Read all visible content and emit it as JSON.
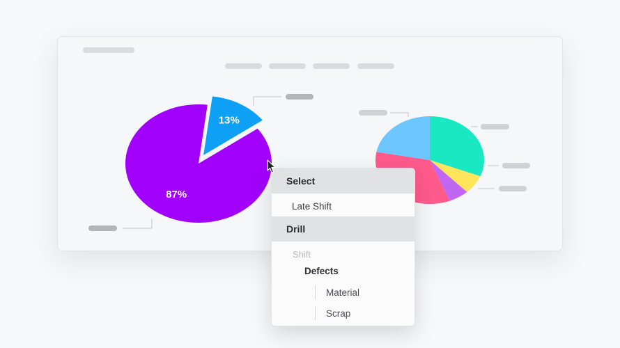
{
  "chart_data": [
    {
      "type": "pie",
      "slices": [
        {
          "label": "",
          "value": 13,
          "value_label": "13%",
          "color": "#0ea0f5",
          "exploded": true
        },
        {
          "label": "",
          "value": 87,
          "value_label": "87%",
          "color": "#a100fb",
          "exploded": false
        }
      ]
    },
    {
      "type": "pie",
      "slices": [
        {
          "label": "",
          "value": 31,
          "color": "#19e8c2"
        },
        {
          "label": "",
          "value": 7,
          "color": "#ffe45c"
        },
        {
          "label": "",
          "value": 6,
          "color": "#c066f2"
        },
        {
          "label": "",
          "value": 34,
          "color": "#ff5a8c"
        },
        {
          "label": "",
          "value": 22,
          "color": "#6ec6ff"
        }
      ]
    }
  ],
  "context_menu": {
    "select_header": "Select",
    "select_value": "Late Shift",
    "drill_header": "Drill",
    "drill_level": "Shift",
    "drill_child": "Defects",
    "drill_options": [
      "Material",
      "Scrap"
    ]
  }
}
